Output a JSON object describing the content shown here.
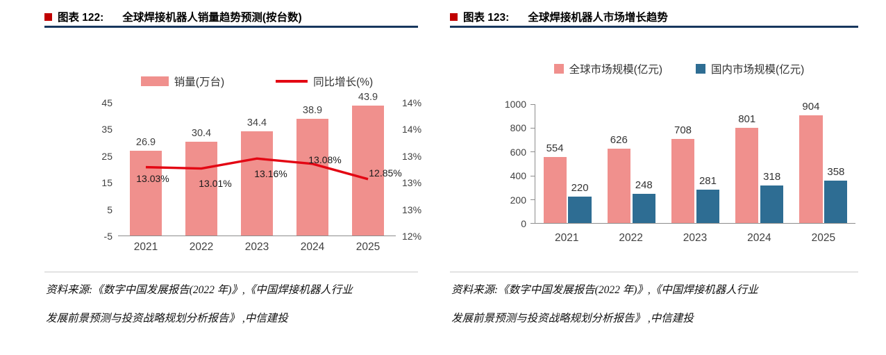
{
  "colors": {
    "bar_pink": "#F0908D",
    "line_red": "#E30613",
    "bar_blue": "#2E6D93",
    "bullet_red": "#C00000",
    "header_rule": "#17375E",
    "separator": "#C9C9C9",
    "axis_text": "#404040",
    "axis_line": "#8C8C8C"
  },
  "figure_122": {
    "tag": "图表 122:",
    "title": "全球焊接机器人销量趋势预测(按台数)",
    "source_lines": [
      "资料来源:《数字中国发展报告(2022 年)》,《中国焊接机器人行业",
      "发展前景预测与投资战略规划分析报告》 ,中信建投"
    ]
  },
  "figure_123": {
    "tag": "图表 123:",
    "title": "全球焊接机器人市场增长趋势",
    "source_lines": [
      "资料来源:《数字中国发展报告(2022 年)》,《中国焊接机器人行业",
      "发展前景预测与投资战略规划分析报告》 ,中信建投"
    ]
  },
  "chart_data": [
    {
      "type": "bar+line",
      "title": "全球焊接机器人销量趋势预测(按台数)",
      "legend_position": "top",
      "grid": false,
      "categories": [
        "2021",
        "2022",
        "2023",
        "2024",
        "2025"
      ],
      "series": [
        {
          "name": "销量(万台)",
          "type": "bar",
          "axis": "left",
          "values": [
            26.9,
            30.4,
            34.4,
            38.9,
            43.9
          ]
        },
        {
          "name": "同比增长(%)",
          "type": "line",
          "axis": "right",
          "values": [
            13.03,
            13.01,
            13.16,
            13.08,
            12.85
          ]
        }
      ],
      "bar_labels": [
        "26.9",
        "30.4",
        "34.4",
        "38.9",
        "43.9"
      ],
      "line_labels": [
        "13.03%",
        "13.01%",
        "13.16%",
        "13.08%",
        "12.85%"
      ],
      "left_axis": {
        "min": -5,
        "max": 45,
        "ticks": [
          45,
          35,
          25,
          15,
          5,
          -5
        ]
      },
      "right_axis": {
        "min": 12,
        "max": 14,
        "tick_labels": [
          "14%",
          "14%",
          "13%",
          "13%",
          "13%",
          "12%"
        ]
      }
    },
    {
      "type": "bar",
      "title": "全球焊接机器人市场增长趋势",
      "legend_position": "top",
      "grid": false,
      "categories": [
        "2021",
        "2022",
        "2023",
        "2024",
        "2025"
      ],
      "series": [
        {
          "name": "全球市场规模(亿元)",
          "values": [
            554,
            626,
            708,
            801,
            904
          ]
        },
        {
          "name": "国内市场规模(亿元)",
          "values": [
            220,
            248,
            281,
            318,
            358
          ]
        }
      ],
      "y_axis": {
        "min": 0,
        "max": 1000,
        "ticks": [
          1000,
          800,
          600,
          400,
          200,
          0
        ]
      }
    }
  ]
}
